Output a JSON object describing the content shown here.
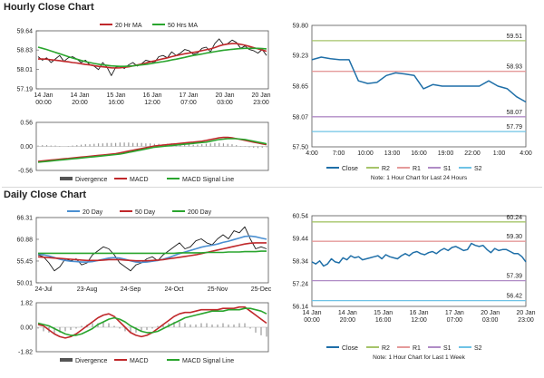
{
  "sections": {
    "hourly_title": "Hourly Close Chart",
    "daily_title": "Daily Close Chart"
  },
  "colors": {
    "close": "#1f6fa8",
    "ma_red": "#c0282b",
    "ma_green": "#2aa52e",
    "ma_blue": "#4a8fd1",
    "macd_black": "#1a1a1a",
    "r2": "#a6c46a",
    "r1": "#e59a9a",
    "s1": "#b08cc6",
    "s2": "#6fc3e6",
    "hist": "#999999"
  },
  "chart_data": [
    {
      "id": "hourly-price",
      "type": "line",
      "yticks": [
        "59.64",
        "58.83",
        "58.01",
        "57.19"
      ],
      "ylim": [
        57.19,
        59.64
      ],
      "xticks": [
        "14 Jan\n00:00",
        "14 Jan\n20:00",
        "15 Jan\n16:00",
        "16 Jan\n12:00",
        "17 Jan\n07:00",
        "20 Jan\n03:00",
        "20 Jan\n23:00"
      ],
      "legend": [
        "20 Hr MA",
        "50 Hrs MA"
      ],
      "series": [
        {
          "name": "Close",
          "color_key": "macd_black",
          "values": [
            58.55,
            58.4,
            58.5,
            58.3,
            58.45,
            58.6,
            58.35,
            58.5,
            58.55,
            58.45,
            58.3,
            58.4,
            58.2,
            58.15,
            58.0,
            58.3,
            58.1,
            57.75,
            58.1,
            58.15,
            58.05,
            58.2,
            58.3,
            58.15,
            58.25,
            58.4,
            58.35,
            58.3,
            58.55,
            58.6,
            58.5,
            58.75,
            58.6,
            58.7,
            58.85,
            58.8,
            58.65,
            58.7,
            58.9,
            58.95,
            58.75,
            59.1,
            59.3,
            59.05,
            59.1,
            59.25,
            59.15,
            58.9,
            59.0,
            58.85,
            58.8,
            58.7,
            58.85,
            58.6
          ]
        },
        {
          "name": "20 Hr MA",
          "color_key": "ma_red",
          "values": [
            58.45,
            58.45,
            58.44,
            58.42,
            58.4,
            58.38,
            58.35,
            58.33,
            58.3,
            58.28,
            58.25,
            58.22,
            58.2,
            58.17,
            58.14,
            58.12,
            58.1,
            58.08,
            58.07,
            58.08,
            58.1,
            58.12,
            58.16,
            58.2,
            58.24,
            58.28,
            58.33,
            58.37,
            58.42,
            58.46,
            58.5,
            58.55,
            58.59,
            58.63,
            58.67,
            58.7,
            58.73,
            58.76,
            58.8,
            58.84,
            58.88,
            58.93,
            59.0,
            59.05,
            59.08,
            59.1,
            59.1,
            59.07,
            59.03,
            58.98,
            58.93,
            58.88,
            58.83,
            58.78
          ]
        },
        {
          "name": "50 Hrs MA",
          "color_key": "ma_green",
          "values": [
            58.95,
            58.9,
            58.85,
            58.79,
            58.73,
            58.67,
            58.61,
            58.55,
            58.49,
            58.44,
            58.39,
            58.34,
            58.3,
            58.26,
            58.23,
            58.2,
            58.18,
            58.16,
            58.15,
            58.14,
            58.14,
            58.15,
            58.16,
            58.18,
            58.2,
            58.22,
            58.25,
            58.28,
            58.31,
            58.34,
            58.37,
            58.41,
            58.44,
            58.48,
            58.52,
            58.56,
            58.6,
            58.63,
            58.66,
            58.7,
            58.73,
            58.76,
            58.79,
            58.82,
            58.84,
            58.86,
            58.88,
            58.89,
            58.9,
            58.9,
            58.9,
            58.9,
            58.89,
            58.88
          ]
        }
      ]
    },
    {
      "id": "hourly-macd",
      "type": "line",
      "yticks": [
        "0.56",
        "0.00",
        "-0.56"
      ],
      "ylim": [
        -0.56,
        0.56
      ],
      "legend": [
        "Divergence",
        "MACD",
        "MACD Signal Line"
      ],
      "histogram": [
        0.02,
        0.03,
        0.03,
        0.02,
        0.02,
        0.01,
        0.0,
        0.01,
        0.02,
        0.03,
        0.04,
        0.05,
        0.05,
        0.06,
        0.07,
        0.07,
        0.08,
        0.08,
        0.08,
        0.09,
        0.09,
        0.09,
        0.08,
        0.08,
        0.08,
        0.07,
        0.07,
        0.06,
        0.06,
        0.05,
        0.06,
        0.07,
        0.07,
        0.06,
        0.05,
        0.05,
        0.04,
        0.04,
        0.05,
        0.06,
        0.07,
        0.08,
        0.08,
        0.07,
        0.06,
        0.05,
        0.03,
        0.01,
        -0.01,
        -0.02,
        -0.03,
        -0.04,
        -0.03,
        -0.02
      ],
      "series": [
        {
          "name": "MACD",
          "color_key": "ma_red",
          "values": [
            -0.35,
            -0.34,
            -0.33,
            -0.32,
            -0.31,
            -0.3,
            -0.29,
            -0.28,
            -0.27,
            -0.26,
            -0.25,
            -0.24,
            -0.23,
            -0.22,
            -0.21,
            -0.2,
            -0.19,
            -0.18,
            -0.17,
            -0.15,
            -0.13,
            -0.11,
            -0.09,
            -0.07,
            -0.05,
            -0.03,
            -0.01,
            0.01,
            0.02,
            0.03,
            0.04,
            0.05,
            0.06,
            0.07,
            0.08,
            0.09,
            0.1,
            0.11,
            0.12,
            0.14,
            0.16,
            0.18,
            0.2,
            0.21,
            0.21,
            0.2,
            0.18,
            0.16,
            0.14,
            0.12,
            0.1,
            0.08,
            0.06,
            0.04
          ]
        },
        {
          "name": "MACD Signal Line",
          "color_key": "ma_green",
          "values": [
            -0.37,
            -0.36,
            -0.35,
            -0.34,
            -0.33,
            -0.32,
            -0.31,
            -0.3,
            -0.29,
            -0.28,
            -0.27,
            -0.26,
            -0.25,
            -0.24,
            -0.23,
            -0.22,
            -0.21,
            -0.2,
            -0.19,
            -0.18,
            -0.16,
            -0.14,
            -0.12,
            -0.1,
            -0.08,
            -0.06,
            -0.04,
            -0.02,
            -0.01,
            0.0,
            0.01,
            0.02,
            0.03,
            0.04,
            0.05,
            0.06,
            0.07,
            0.08,
            0.09,
            0.1,
            0.12,
            0.14,
            0.16,
            0.17,
            0.18,
            0.18,
            0.18,
            0.17,
            0.16,
            0.14,
            0.12,
            0.1,
            0.08,
            0.06
          ]
        }
      ]
    },
    {
      "id": "hourly-pivot",
      "type": "line",
      "yticks": [
        "59.80",
        "59.23",
        "58.65",
        "58.07",
        "57.50"
      ],
      "ylim": [
        57.5,
        59.8
      ],
      "xticks": [
        "4:00",
        "7:00",
        "10:00",
        "13:00",
        "16:00",
        "19:00",
        "22:00",
        "1:00",
        "4:00"
      ],
      "levels": [
        {
          "name": "R2",
          "value": 59.51,
          "label": "59.51",
          "color_key": "r2"
        },
        {
          "name": "R1",
          "value": 58.93,
          "label": "58.93",
          "color_key": "r1"
        },
        {
          "name": "S1",
          "value": 58.07,
          "label": "58.07",
          "color_key": "s1"
        },
        {
          "name": "S2",
          "value": 57.79,
          "label": "57.79",
          "color_key": "s2"
        }
      ],
      "legend": [
        "Close",
        "R2",
        "R1",
        "S1",
        "S2"
      ],
      "note": "Note: 1 Hour Chart for Last 24 Hours",
      "series": [
        {
          "name": "Close",
          "color_key": "close",
          "values": [
            59.15,
            59.2,
            59.17,
            59.15,
            59.15,
            58.75,
            58.7,
            58.72,
            58.85,
            58.9,
            58.88,
            58.85,
            58.6,
            58.68,
            58.65,
            58.65,
            58.65,
            58.65,
            58.65,
            58.75,
            58.65,
            58.6,
            58.45,
            58.35
          ]
        }
      ]
    },
    {
      "id": "daily-price",
      "type": "line",
      "yticks": [
        "66.31",
        "60.88",
        "55.45",
        "50.01"
      ],
      "ylim": [
        50.01,
        66.31
      ],
      "xticks": [
        "24-Jul",
        "23-Aug",
        "24-Sep",
        "24-Oct",
        "25-Nov",
        "25-Dec"
      ],
      "legend": [
        "20 Day",
        "50 Day",
        "200 Day"
      ],
      "series": [
        {
          "name": "Close",
          "color_key": "macd_black",
          "values": [
            57,
            56.5,
            55,
            53,
            54,
            56,
            55.5,
            56,
            54.5,
            55,
            57,
            58,
            59,
            58.5,
            57,
            55,
            54,
            53,
            54.5,
            55,
            56,
            56.5,
            55.5,
            57,
            58,
            59,
            60,
            58.5,
            59,
            60.5,
            61,
            60,
            59.5,
            61,
            62,
            61,
            63,
            62.5,
            64,
            61,
            58.5,
            59,
            58.5
          ]
        },
        {
          "name": "20 Day",
          "color_key": "ma_blue",
          "values": [
            57.2,
            57,
            56.7,
            56.3,
            55.9,
            55.6,
            55.4,
            55.3,
            55.2,
            55.2,
            55.3,
            55.6,
            55.9,
            56.2,
            56.3,
            56.2,
            55.9,
            55.5,
            55.2,
            55.1,
            55.2,
            55.4,
            55.6,
            55.9,
            56.3,
            56.8,
            57.3,
            57.7,
            58.1,
            58.5,
            58.9,
            59.2,
            59.4,
            59.7,
            60.1,
            60.4,
            60.8,
            61.2,
            61.6,
            61.7,
            61.5,
            61.2,
            60.9
          ]
        },
        {
          "name": "50 Day",
          "color_key": "ma_red",
          "values": [
            56.5,
            56.4,
            56.3,
            56.2,
            56.1,
            56,
            55.9,
            55.8,
            55.7,
            55.6,
            55.6,
            55.6,
            55.7,
            55.8,
            55.8,
            55.8,
            55.7,
            55.6,
            55.5,
            55.5,
            55.5,
            55.6,
            55.7,
            55.8,
            56,
            56.2,
            56.4,
            56.6,
            56.8,
            57,
            57.3,
            57.6,
            57.9,
            58.2,
            58.5,
            58.8,
            59.1,
            59.4,
            59.7,
            59.9,
            60,
            60,
            60
          ]
        },
        {
          "name": "200 Day",
          "color_key": "ma_green",
          "values": [
            57.4,
            57.4,
            57.4,
            57.4,
            57.4,
            57.4,
            57.4,
            57.4,
            57.4,
            57.4,
            57.4,
            57.4,
            57.4,
            57.4,
            57.4,
            57.4,
            57.4,
            57.4,
            57.4,
            57.4,
            57.4,
            57.4,
            57.4,
            57.4,
            57.4,
            57.4,
            57.5,
            57.5,
            57.5,
            57.5,
            57.5,
            57.6,
            57.6,
            57.6,
            57.6,
            57.7,
            57.7,
            57.7,
            57.8,
            57.8,
            57.8,
            57.9,
            57.9
          ]
        }
      ]
    },
    {
      "id": "daily-macd",
      "type": "line",
      "yticks": [
        "1.82",
        "0.00",
        "-1.82"
      ],
      "ylim": [
        -1.82,
        1.82
      ],
      "legend": [
        "Divergence",
        "MACD",
        "MACD Signal Line"
      ],
      "histogram": [
        -0.1,
        -0.3,
        -0.4,
        -0.5,
        -0.4,
        -0.3,
        -0.2,
        -0.1,
        0.1,
        0.2,
        0.3,
        0.3,
        0.4,
        0.3,
        0.1,
        -0.1,
        -0.3,
        -0.4,
        -0.4,
        -0.3,
        -0.2,
        -0.1,
        0.1,
        0.2,
        0.3,
        0.4,
        0.4,
        0.3,
        0.2,
        0.2,
        0.3,
        0.3,
        0.2,
        0.2,
        0.3,
        0.2,
        0.2,
        0.3,
        0.3,
        -0.1,
        -0.4,
        -0.6,
        -0.7
      ],
      "series": [
        {
          "name": "MACD",
          "color_key": "ma_red",
          "values": [
            0.2,
            0.1,
            -0.2,
            -0.5,
            -0.7,
            -0.8,
            -0.7,
            -0.5,
            -0.2,
            0.1,
            0.4,
            0.7,
            0.9,
            1.0,
            0.8,
            0.4,
            0.0,
            -0.4,
            -0.6,
            -0.7,
            -0.6,
            -0.4,
            -0.1,
            0.2,
            0.5,
            0.8,
            1.0,
            1.1,
            1.1,
            1.2,
            1.3,
            1.3,
            1.3,
            1.3,
            1.4,
            1.4,
            1.4,
            1.5,
            1.5,
            1.2,
            0.9,
            0.6,
            0.3
          ]
        },
        {
          "name": "MACD Signal Line",
          "color_key": "ma_green",
          "values": [
            0.3,
            0.2,
            0.1,
            -0.1,
            -0.3,
            -0.5,
            -0.6,
            -0.6,
            -0.5,
            -0.3,
            -0.1,
            0.2,
            0.4,
            0.6,
            0.7,
            0.6,
            0.4,
            0.1,
            -0.1,
            -0.3,
            -0.4,
            -0.4,
            -0.3,
            -0.1,
            0.1,
            0.3,
            0.5,
            0.7,
            0.8,
            0.9,
            1.0,
            1.1,
            1.2,
            1.2,
            1.2,
            1.3,
            1.3,
            1.3,
            1.4,
            1.4,
            1.3,
            1.2,
            1.0
          ]
        }
      ]
    },
    {
      "id": "daily-pivot",
      "type": "line",
      "yticks": [
        "60.54",
        "59.44",
        "58.34",
        "57.24",
        "56.14"
      ],
      "ylim": [
        56.14,
        60.54
      ],
      "xticks": [
        "14 Jan\n00:00",
        "14 Jan\n20:00",
        "15 Jan\n16:00",
        "16 Jan\n12:00",
        "17 Jan\n07:00",
        "20 Jan\n03:00",
        "20 Jan\n23:00"
      ],
      "levels": [
        {
          "name": "R2",
          "value": 60.24,
          "label": "60.24",
          "color_key": "r2"
        },
        {
          "name": "R1",
          "value": 59.3,
          "label": "59.30",
          "color_key": "r1"
        },
        {
          "name": "S1",
          "value": 57.39,
          "label": "57.39",
          "color_key": "s1"
        },
        {
          "name": "S2",
          "value": 56.42,
          "label": "56.42",
          "color_key": "s2"
        }
      ],
      "legend": [
        "Close",
        "R2",
        "R1",
        "S1",
        "S2"
      ],
      "note": "Note: 1 Hour Chart for Last 1 Week",
      "series": [
        {
          "name": "Close",
          "color_key": "close",
          "values": [
            58.3,
            58.2,
            58.35,
            58.1,
            58.2,
            58.45,
            58.3,
            58.25,
            58.5,
            58.4,
            58.6,
            58.5,
            58.55,
            58.4,
            58.45,
            58.5,
            58.55,
            58.6,
            58.45,
            58.65,
            58.55,
            58.5,
            58.45,
            58.6,
            58.7,
            58.6,
            58.75,
            58.8,
            58.7,
            58.65,
            58.75,
            58.8,
            58.7,
            58.85,
            58.95,
            58.85,
            59.0,
            59.05,
            58.95,
            58.85,
            58.9,
            59.2,
            59.1,
            59.05,
            59.1,
            58.9,
            58.75,
            58.95,
            58.85,
            58.9,
            58.9,
            58.8,
            58.7,
            58.7,
            58.55,
            58.3
          ]
        }
      ]
    }
  ]
}
